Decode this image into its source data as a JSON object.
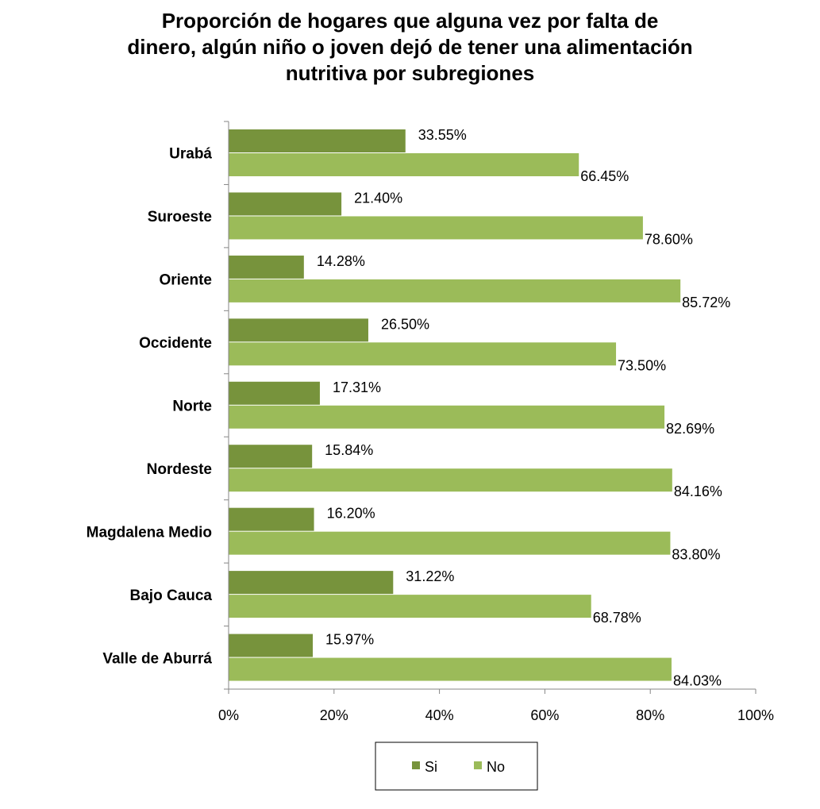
{
  "chart_data": {
    "type": "bar",
    "orientation": "horizontal",
    "title_lines": [
      "Proporción de hogares que alguna vez por falta de",
      "dinero, algún niño o joven dejó de tener una alimentación",
      "nutritiva por subregiones"
    ],
    "categories": [
      "Urabá",
      "Suroeste",
      "Oriente",
      "Occidente",
      "Norte",
      "Nordeste",
      "Magdalena Medio",
      "Bajo Cauca",
      "Valle de Aburrá"
    ],
    "series": [
      {
        "name": "Si",
        "color": "#77933c",
        "values": [
          33.55,
          21.4,
          14.28,
          26.5,
          17.31,
          15.84,
          16.2,
          31.22,
          15.97
        ],
        "labels": [
          "33.55%",
          "21.40%",
          "14.28%",
          "26.50%",
          "17.31%",
          "15.84%",
          "16.20%",
          "31.22%",
          "15.97%"
        ]
      },
      {
        "name": "No",
        "color": "#9bbb59",
        "values": [
          66.45,
          78.6,
          85.72,
          73.5,
          82.69,
          84.16,
          83.8,
          68.78,
          84.03
        ],
        "labels": [
          "66.45%",
          "78.60%",
          "85.72%",
          "73.50%",
          "82.69%",
          "84.16%",
          "83.80%",
          "68.78%",
          "84.03%"
        ]
      }
    ],
    "xlim": [
      0,
      100
    ],
    "xticks": [
      0,
      20,
      40,
      60,
      80,
      100
    ],
    "xtick_labels": [
      "0%",
      "20%",
      "40%",
      "60%",
      "80%",
      "100%"
    ],
    "xlabel": "",
    "ylabel": "",
    "grid": false,
    "legend_position": "bottom"
  }
}
